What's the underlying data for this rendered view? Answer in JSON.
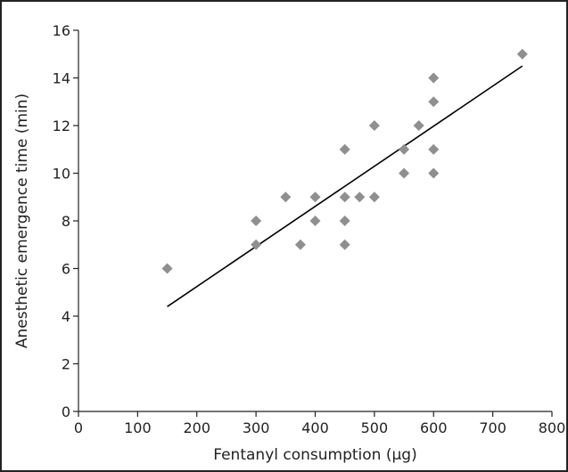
{
  "chart_data": {
    "type": "scatter",
    "title": "",
    "xlabel": "Fentanyl consumption (µg)",
    "ylabel": "Anesthetic emergence time (min)",
    "xlim": [
      0,
      800
    ],
    "ylim": [
      0,
      16
    ],
    "xticks": [
      0,
      100,
      200,
      300,
      400,
      500,
      600,
      700,
      800
    ],
    "yticks": [
      0,
      2,
      4,
      6,
      8,
      10,
      12,
      14,
      16
    ],
    "grid": false,
    "legend": "none",
    "marker": "diamond",
    "marker_color": "#8f8f8f",
    "line_color": "#000000",
    "points": [
      {
        "x": 150,
        "y": 6
      },
      {
        "x": 300,
        "y": 8
      },
      {
        "x": 300,
        "y": 7
      },
      {
        "x": 350,
        "y": 9
      },
      {
        "x": 375,
        "y": 7
      },
      {
        "x": 400,
        "y": 9
      },
      {
        "x": 400,
        "y": 8
      },
      {
        "x": 450,
        "y": 11
      },
      {
        "x": 450,
        "y": 9
      },
      {
        "x": 450,
        "y": 8
      },
      {
        "x": 450,
        "y": 7
      },
      {
        "x": 475,
        "y": 9
      },
      {
        "x": 500,
        "y": 12
      },
      {
        "x": 500,
        "y": 9
      },
      {
        "x": 550,
        "y": 11
      },
      {
        "x": 550,
        "y": 10
      },
      {
        "x": 575,
        "y": 12
      },
      {
        "x": 600,
        "y": 14
      },
      {
        "x": 600,
        "y": 13
      },
      {
        "x": 600,
        "y": 11
      },
      {
        "x": 600,
        "y": 10
      },
      {
        "x": 750,
        "y": 15
      }
    ],
    "trendline": {
      "x": [
        150,
        750
      ],
      "y": [
        4.4,
        14.5
      ]
    }
  }
}
